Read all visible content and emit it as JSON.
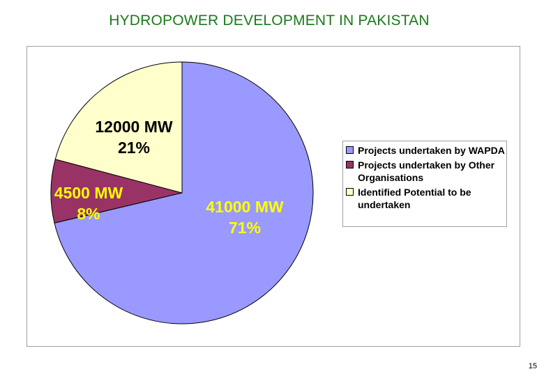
{
  "slide": {
    "title": "HYDROPOWER DEVELOPMENT IN PAKISTAN",
    "page_number": "15"
  },
  "chart_data": {
    "type": "pie",
    "title": "",
    "slices": [
      {
        "name": "Projects undertaken by WAPDA",
        "value": 41000,
        "unit": "MW",
        "value_label": "41000 MW",
        "percent_label": "71%",
        "color": "#9999ff",
        "label_color": "#ffff00"
      },
      {
        "name": "Projects undertaken by Other Organisations",
        "value": 4500,
        "unit": "MW",
        "value_label": "4500 MW",
        "percent_label": "8%",
        "color": "#993366",
        "label_color": "#ffff00"
      },
      {
        "name": "Identified Potential to be undertaken",
        "value": 12000,
        "unit": "MW",
        "value_label": "12000 MW",
        "percent_label": "21%",
        "color": "#ffffcc",
        "label_color": "#000000"
      }
    ],
    "legend_position": "right",
    "start_angle_deg": 0,
    "direction": "clockwise"
  }
}
